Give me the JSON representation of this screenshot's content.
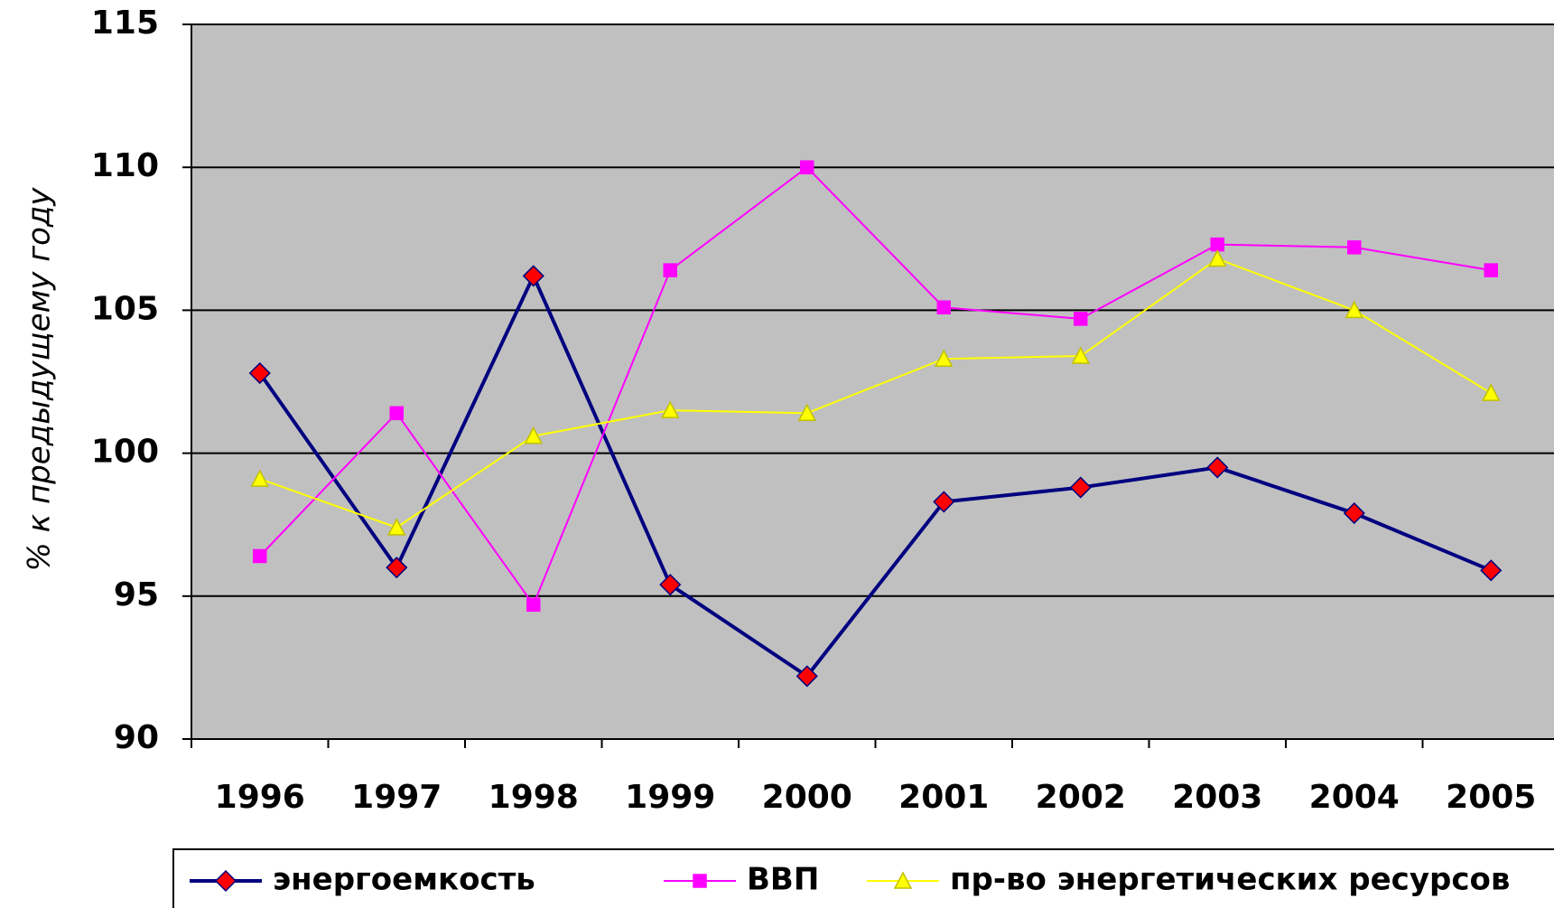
{
  "chart_data": {
    "type": "line",
    "y_label": "% к предыдущему году",
    "categories": [
      "1996",
      "1997",
      "1998",
      "1999",
      "2000",
      "2001",
      "2002",
      "2003",
      "2004",
      "2005"
    ],
    "series": [
      {
        "name": "энергоемкость",
        "color": "#000080",
        "marker": "diamond",
        "marker_color": "#ff0000",
        "line_width": 4,
        "values": [
          102.8,
          96.0,
          106.2,
          95.4,
          92.2,
          98.3,
          98.8,
          99.5,
          97.9,
          95.9
        ]
      },
      {
        "name": "ВВП",
        "color": "#ff00ff",
        "marker": "square",
        "marker_color": "#ff00ff",
        "line_width": 2,
        "values": [
          96.4,
          101.4,
          94.7,
          106.4,
          110.0,
          105.1,
          104.7,
          107.3,
          107.2,
          106.4
        ]
      },
      {
        "name": "пр-во энергетических ресурсов",
        "color": "#ffff00",
        "marker": "triangle",
        "marker_color": "#ffff00",
        "line_width": 2,
        "values": [
          99.1,
          97.4,
          100.6,
          101.5,
          101.4,
          103.3,
          103.4,
          106.8,
          105.0,
          102.1
        ]
      }
    ],
    "ylim": [
      90,
      115
    ],
    "yticks": [
      90,
      95,
      100,
      105,
      110,
      115
    ],
    "grid": true,
    "legend": "bottom"
  }
}
